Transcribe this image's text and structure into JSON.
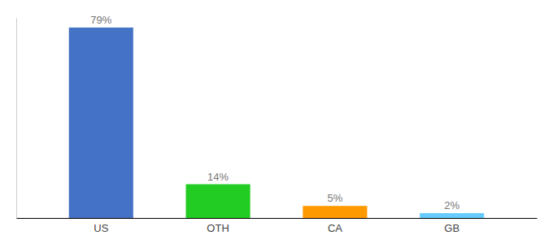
{
  "chart_data": {
    "type": "bar",
    "categories": [
      "US",
      "OTH",
      "CA",
      "GB"
    ],
    "values": [
      79,
      14,
      5,
      2
    ],
    "value_labels": [
      "79%",
      "14%",
      "5%",
      "2%"
    ],
    "colors": [
      "#4472c4",
      "#22cc22",
      "#ff9900",
      "#66ccff"
    ],
    "ylim": [
      0,
      83
    ],
    "data_labels": true,
    "tick_labels": "x"
  }
}
